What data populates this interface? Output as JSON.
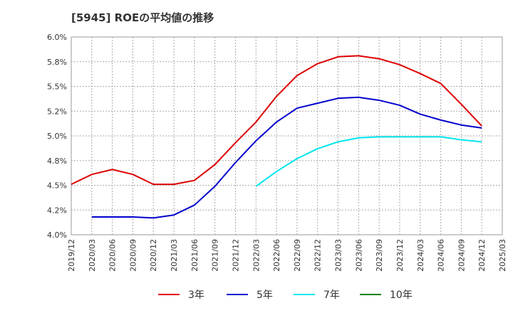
{
  "chart_data": {
    "type": "line",
    "title": "[5945]  ROEの平均値の推移",
    "categories": [
      "2019/12",
      "2020/03",
      "2020/06",
      "2020/09",
      "2020/12",
      "2021/03",
      "2021/06",
      "2021/09",
      "2021/12",
      "2022/03",
      "2022/06",
      "2022/09",
      "2022/12",
      "2023/03",
      "2023/06",
      "2023/09",
      "2023/12",
      "2024/03",
      "2024/06",
      "2024/09",
      "2024/12",
      "2025/03"
    ],
    "y_tick_labels": [
      "4.0%",
      "4.2%",
      "4.5%",
      "4.8%",
      "5.0%",
      "5.2%",
      "5.5%",
      "5.8%",
      "6.0%"
    ],
    "ylim": [
      4.0,
      6.0
    ],
    "grid": true,
    "legend_position": "bottom",
    "series": [
      {
        "name": "3年",
        "color": "#dd0000",
        "values": [
          4.51,
          4.61,
          4.66,
          4.61,
          4.51,
          4.51,
          4.55,
          4.71,
          4.93,
          5.14,
          5.4,
          5.61,
          5.73,
          5.8,
          5.81,
          5.78,
          5.72,
          5.63,
          5.53,
          5.32,
          5.1,
          null
        ]
      },
      {
        "name": "5年",
        "color": "#0000cc",
        "values": [
          null,
          4.18,
          4.18,
          4.18,
          4.17,
          4.2,
          4.3,
          4.49,
          4.73,
          4.95,
          5.14,
          5.28,
          5.33,
          5.38,
          5.39,
          5.36,
          5.31,
          5.22,
          5.16,
          5.11,
          5.08,
          null
        ]
      },
      {
        "name": "7年",
        "color": "#00e5ee",
        "values": [
          null,
          null,
          null,
          null,
          null,
          null,
          null,
          null,
          null,
          4.49,
          4.64,
          4.77,
          4.87,
          4.94,
          4.98,
          4.99,
          4.99,
          4.99,
          4.99,
          4.96,
          4.94,
          null
        ]
      },
      {
        "name": "10年",
        "color": "#008000",
        "values": [
          null,
          null,
          null,
          null,
          null,
          null,
          null,
          null,
          null,
          null,
          null,
          null,
          null,
          null,
          null,
          null,
          null,
          null,
          null,
          null,
          null,
          null
        ]
      }
    ]
  }
}
